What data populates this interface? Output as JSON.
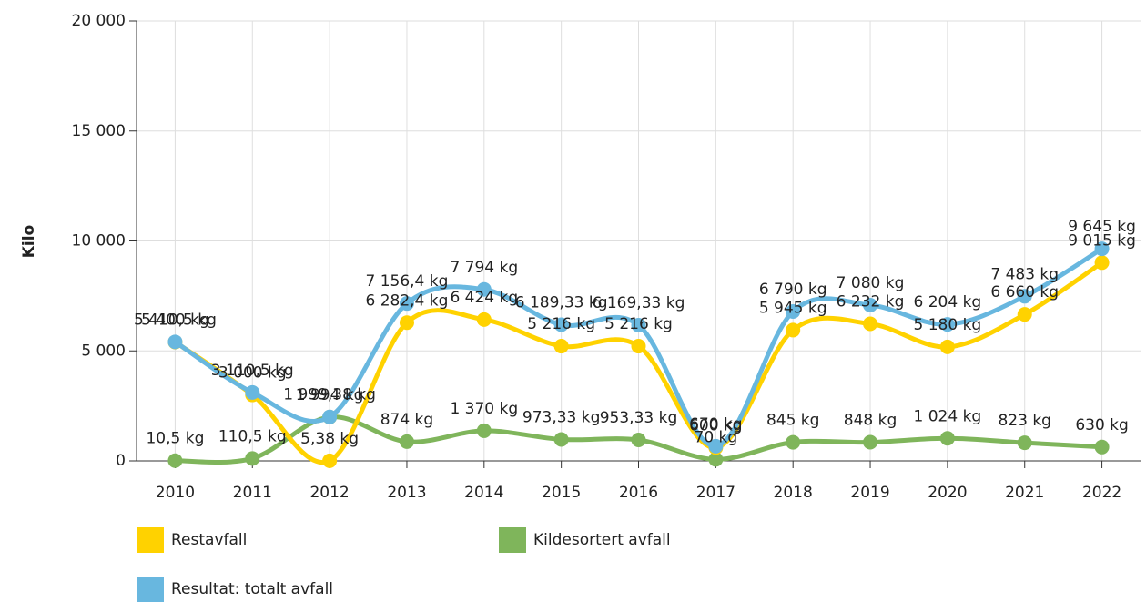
{
  "chart_data": {
    "type": "line",
    "y_label": "Kilo",
    "categories": [
      "2010",
      "2011",
      "2012",
      "2013",
      "2014",
      "2015",
      "2016",
      "2017",
      "2018",
      "2019",
      "2020",
      "2021",
      "2022"
    ],
    "series": [
      {
        "name": "Kildesortert avfall",
        "color": "#7fb55b",
        "values": [
          10.5,
          110.5,
          1994,
          874,
          1370,
          973.33,
          953.33,
          70,
          845,
          848,
          1024,
          823,
          630
        ],
        "value_labels": [
          "10,5 kg",
          "110,5 kg",
          "1 994 kg",
          "874 kg",
          "1 370 kg",
          "973,33 kg",
          "953,33 kg",
          "70 kg",
          "845 kg",
          "848 kg",
          "1 024 kg",
          "823 kg",
          "630 kg"
        ]
      },
      {
        "name": "Restavfall",
        "color": "#ffd200",
        "values": [
          5400,
          3000,
          5.38,
          6282.4,
          6424,
          5216,
          5216,
          600,
          5945,
          6232,
          5180,
          6660,
          9015
        ],
        "value_labels": [
          "5 400 kg",
          "3 000 kg",
          "5,38 kg",
          "6 282,4 kg",
          "6 424 kg",
          "5 216 kg",
          "5 216 kg",
          "600 kg",
          "5 945 kg",
          "6 232 kg",
          "5 180 kg",
          "6 660 kg",
          "9 015 kg"
        ]
      },
      {
        "name": "Resultat: totalt avfall",
        "color": "#68b7df",
        "values": [
          5410.5,
          3110.5,
          1999.38,
          7156.4,
          7794,
          6189.33,
          6169.33,
          670,
          6790,
          7080,
          6204,
          7483,
          9645
        ],
        "value_labels": [
          "5 410,5 kg",
          "3 110,5 kg",
          "1 999,38 kg",
          "7 156,4 kg",
          "7 794 kg",
          "6 189,33 kg",
          "6 169,33 kg",
          "670 kg",
          "6 790 kg",
          "7 080 kg",
          "6 204 kg",
          "7 483 kg",
          "9 645 kg"
        ]
      }
    ],
    "ylim": [
      0,
      20000
    ],
    "yticks": [
      0,
      {
        "value": 5000,
        "label": "5 000"
      },
      {
        "value": 10000,
        "label": "10 000"
      },
      {
        "value": 15000,
        "label": "15 000"
      },
      {
        "value": 20000,
        "label": "20 000"
      }
    ],
    "grid": true
  }
}
